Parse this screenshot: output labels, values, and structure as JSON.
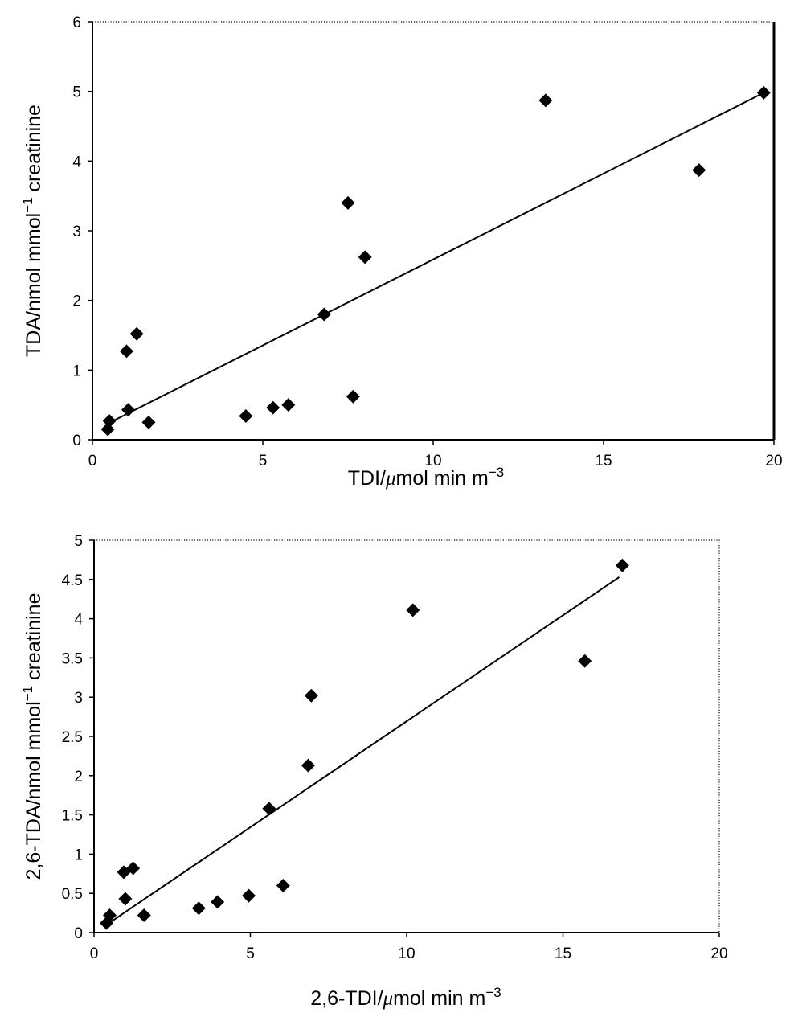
{
  "chart_data": [
    {
      "type": "scatter",
      "xlabel": {
        "pre": "TDI/",
        "mu": "μ",
        "post": "mol min m",
        "sup": "−3"
      },
      "ylabel": {
        "pre": "TDA/nmol mmol",
        "sup": "−1",
        "post": " creatinine"
      },
      "xlim": [
        0,
        20
      ],
      "ylim": [
        0,
        6
      ],
      "xticks": [
        "0",
        "5",
        "10",
        "15",
        "20"
      ],
      "yticks": [
        "0",
        "1",
        "2",
        "3",
        "4",
        "5",
        "6"
      ],
      "grid": false,
      "legend": "none",
      "series": [
        {
          "points": [
            [
              0.45,
              0.15
            ],
            [
              0.5,
              0.27
            ],
            [
              1.0,
              1.27
            ],
            [
              1.05,
              0.43
            ],
            [
              1.3,
              1.52
            ],
            [
              1.65,
              0.25
            ],
            [
              4.5,
              0.34
            ],
            [
              5.3,
              0.46
            ],
            [
              5.75,
              0.5
            ],
            [
              6.8,
              1.8
            ],
            [
              7.5,
              3.4
            ],
            [
              7.65,
              0.62
            ],
            [
              8.0,
              2.62
            ],
            [
              13.3,
              4.87
            ],
            [
              17.8,
              3.87
            ],
            [
              19.7,
              4.98
            ]
          ]
        }
      ],
      "trendline": {
        "x": [
          0.4,
          19.7
        ],
        "y": [
          0.22,
          4.98
        ]
      }
    },
    {
      "type": "scatter",
      "xlabel": {
        "pre": "2,6-TDI/",
        "mu": "μ",
        "post": "mol min m",
        "sup": "−3"
      },
      "ylabel": {
        "pre": "2,6-TDA/nmol mmol",
        "sup": "−1",
        "post": " creatinine"
      },
      "xlim": [
        0,
        20
      ],
      "ylim": [
        0,
        5
      ],
      "xticks": [
        "0",
        "5",
        "10",
        "15",
        "20"
      ],
      "yticks": [
        "0",
        "0.5",
        "1",
        "1.5",
        "2",
        "2.5",
        "3",
        "3.5",
        "4",
        "4.5",
        "5"
      ],
      "grid": false,
      "legend": "none",
      "series": [
        {
          "points": [
            [
              0.4,
              0.12
            ],
            [
              0.5,
              0.22
            ],
            [
              0.95,
              0.77
            ],
            [
              1.0,
              0.43
            ],
            [
              1.25,
              0.82
            ],
            [
              1.6,
              0.22
            ],
            [
              3.35,
              0.31
            ],
            [
              3.95,
              0.39
            ],
            [
              4.95,
              0.47
            ],
            [
              5.6,
              1.58
            ],
            [
              6.05,
              0.6
            ],
            [
              6.85,
              2.13
            ],
            [
              6.95,
              3.02
            ],
            [
              10.2,
              4.11
            ],
            [
              15.7,
              3.46
            ],
            [
              16.9,
              4.68
            ]
          ]
        }
      ],
      "trendline": {
        "x": [
          0.4,
          16.8
        ],
        "y": [
          0.1,
          4.53
        ]
      }
    }
  ]
}
